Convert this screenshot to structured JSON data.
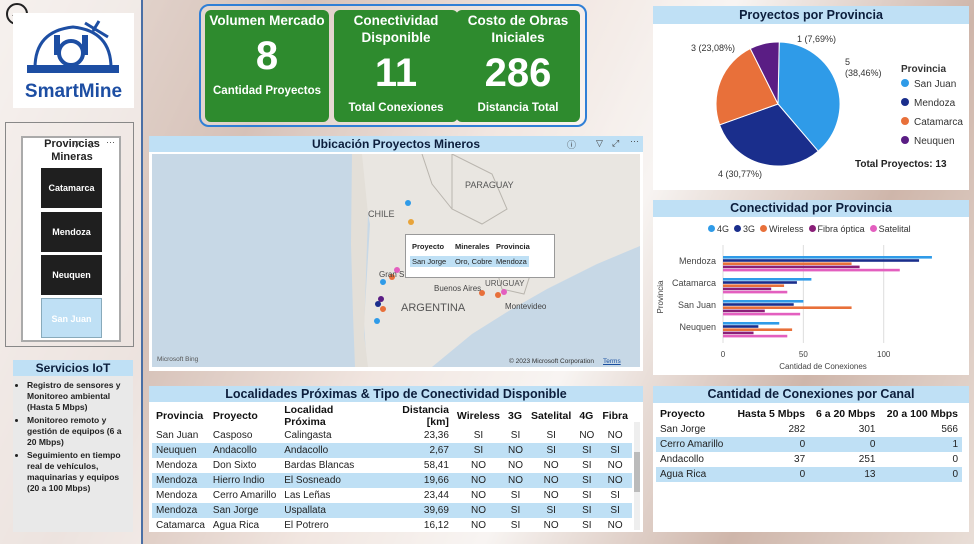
{
  "app": {
    "logo_text": "SmartMine"
  },
  "kpis": [
    {
      "title": "Volumen Mercado",
      "value": "8",
      "label": "Cantidad Proyectos"
    },
    {
      "title": "Conectividad Disponible",
      "value": "11",
      "label": "Total Conexiones"
    },
    {
      "title": "Costo de Obras Iniciales",
      "value": "286",
      "label": "Distancia Total"
    }
  ],
  "slicer": {
    "title": "Provincias Mineras",
    "items": [
      "Catamarca",
      "Mendoza",
      "Neuquen",
      "San Juan"
    ],
    "selected": "San Juan"
  },
  "iot": {
    "title": "Servicios IoT",
    "items": [
      "Registro de sensores y Monitoreo ambiental (Hasta 5 Mbps)",
      "Monitoreo remoto y gestión de equipos (6 a 20 Mbps)",
      "Seguimiento en tiempo real de vehículos, maquinarias y equipos (20 a 100 Mbps)"
    ]
  },
  "map": {
    "title": "Ubicación Proyectos Mineros",
    "labels": {
      "paraguay": "PARAGUAY",
      "chile": "CHILE",
      "argentina": "ARGENTINA",
      "uruguay": "URUGUAY",
      "buenos_aires": "Buenos Aires",
      "montevideo": "Montevideo",
      "gran": "Gran S"
    },
    "tooltip": {
      "headers": [
        "Proyecto",
        "Minerales",
        "Provincia"
      ],
      "row": [
        "San Jorge",
        "Oro, Cobre",
        "Mendoza"
      ]
    },
    "credit": "© 2023 Microsoft Corporation",
    "terms": "Terms",
    "bing": "Microsoft Bing"
  },
  "pie": {
    "title": "Proyectos por Provincia",
    "legend_title": "Provincia",
    "total": "Total Proyectos: 13",
    "labels": {
      "san_juan": "5",
      "san_juan_pct": "(38,46%)",
      "mendoza": "4 (30,77%)",
      "catamarca": "3 (23,08%)",
      "neuquen": "1 (7,69%)"
    }
  },
  "bar_chart": {
    "title": "Conectividad por Provincia",
    "yaxis_title": "Provincia",
    "xaxis_title": "Cantidad de Conexiones"
  },
  "chart_data": [
    {
      "type": "pie",
      "title": "Proyectos por Provincia",
      "categories": [
        "San Juan",
        "Mendoza",
        "Catamarca",
        "Neuquen"
      ],
      "values": [
        5,
        4,
        3,
        1
      ],
      "colors": [
        "#2f9be8",
        "#1a2e8c",
        "#e8703a",
        "#5a1d84"
      ],
      "legend": "right"
    },
    {
      "type": "bar",
      "orientation": "horizontal",
      "title": "Conectividad por Provincia",
      "categories": [
        "Mendoza",
        "Catamarca",
        "San Juan",
        "Neuquen"
      ],
      "series": [
        {
          "name": "4G",
          "color": "#2f9be8",
          "values": [
            130,
            55,
            50,
            35
          ]
        },
        {
          "name": "3G",
          "color": "#1a2e8c",
          "values": [
            122,
            46,
            44,
            22
          ]
        },
        {
          "name": "Wireless",
          "color": "#e8703a",
          "values": [
            80,
            38,
            80,
            43
          ]
        },
        {
          "name": "Fibra óptica",
          "color": "#8a1f78",
          "values": [
            85,
            30,
            26,
            19
          ]
        },
        {
          "name": "Satelital",
          "color": "#e35fbf",
          "values": [
            110,
            40,
            48,
            40
          ]
        }
      ],
      "xticks": [
        "0",
        "50",
        "100"
      ],
      "xlim": [
        0,
        140
      ],
      "xlabel": "Cantidad de Conexiones",
      "ylabel": "Provincia",
      "legend": "top"
    }
  ],
  "table1": {
    "title": "Localidades Próximas & Tipo de Conectividad Disponible",
    "headers": [
      "Provincia",
      "Proyecto",
      "Localidad Próxima",
      "Distancia [km]",
      "Wireless",
      "3G",
      "Satelital",
      "4G",
      "Fibra"
    ],
    "rows": [
      [
        "San Juan",
        "Casposo",
        "Calingasta",
        "23,36",
        "SI",
        "SI",
        "SI",
        "NO",
        "NO"
      ],
      [
        "Neuquen",
        "Andacollo",
        "Andacollo",
        "2,67",
        "SI",
        "NO",
        "SI",
        "SI",
        "SI"
      ],
      [
        "Mendoza",
        "Don Sixto",
        "Bardas Blancas",
        "58,41",
        "NO",
        "NO",
        "NO",
        "SI",
        "NO"
      ],
      [
        "Mendoza",
        "Hierro Indio",
        "El Sosneado",
        "19,66",
        "NO",
        "NO",
        "NO",
        "SI",
        "NO"
      ],
      [
        "Mendoza",
        "Cerro Amarillo",
        "Las Leñas",
        "23,44",
        "NO",
        "SI",
        "NO",
        "SI",
        "SI"
      ],
      [
        "Mendoza",
        "San Jorge",
        "Uspallata",
        "39,69",
        "NO",
        "SI",
        "SI",
        "SI",
        "SI"
      ],
      [
        "Catamarca",
        "Agua Rica",
        "El Potrero",
        "16,12",
        "NO",
        "SI",
        "NO",
        "SI",
        "NO"
      ]
    ]
  },
  "table2": {
    "title": "Cantidad de Conexiones por Canal",
    "headers": [
      "Proyecto",
      "Hasta 5 Mbps",
      "6 a 20 Mbps",
      "20 a 100 Mbps"
    ],
    "rows": [
      [
        "San Jorge",
        "282",
        "301",
        "566"
      ],
      [
        "Cerro Amarillo",
        "0",
        "0",
        "1"
      ],
      [
        "Andacollo",
        "37",
        "251",
        "0"
      ],
      [
        "Agua Rica",
        "0",
        "13",
        "0"
      ]
    ]
  }
}
